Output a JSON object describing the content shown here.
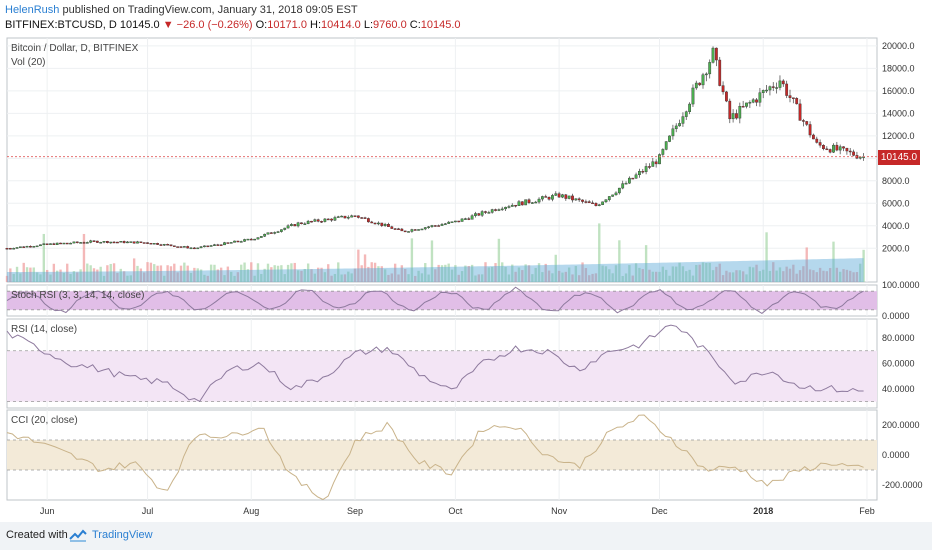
{
  "header": {
    "author": "HelenRush",
    "published": "published on TradingView.com, January 31, 2018 09:05 EST",
    "symbol": "BITFINEX:BTCUSD, D",
    "last": "10145.0",
    "change": "▼ −26.0 (−0.26%)",
    "o_label": "O:",
    "o_val": "10171.0",
    "h_label": "H:",
    "h_val": "10414.0",
    "l_label": "L:",
    "l_val": "9760.0",
    "c_label": "C:",
    "c_val": "10145.0"
  },
  "colors": {
    "up": "#4caf50",
    "down": "#c62828",
    "candle_body": "#333333",
    "volume": "#5aa9d6",
    "stoch_band": "#e1bee7",
    "rsi_band": "#f3e5f5",
    "cci_band": "#f3ead8"
  },
  "price_tag": "10145.0",
  "footer": {
    "created": "Created with",
    "brand": "TradingView",
    "icon": "tradingview-logo-icon"
  },
  "chart_data": [
    {
      "type": "candlestick",
      "title": "Bitcoin / Dollar, D, BITFINEX",
      "subtitle": "Vol (20)",
      "x_labels": [
        "Jun",
        "Jul",
        "Aug",
        "Sep",
        "Oct",
        "Nov",
        "Dec",
        "2018",
        "Feb"
      ],
      "y_ticks": [
        2000,
        4000,
        6000,
        8000,
        10000,
        12000,
        14000,
        16000,
        18000,
        20000
      ],
      "y_tick_labels": [
        "2000.0",
        "4000.0",
        "6000.0",
        "8000.0",
        "10000.0",
        "12000.0",
        "14000.0",
        "16000.0",
        "18000.0",
        "20000.0"
      ],
      "ylim": [
        -1000,
        20700
      ],
      "close_series_monthly": [
        {
          "date": "2017-05-20",
          "close": 2000
        },
        {
          "date": "2017-06-01",
          "close": 2350
        },
        {
          "date": "2017-06-15",
          "close": 2600
        },
        {
          "date": "2017-07-01",
          "close": 2500
        },
        {
          "date": "2017-07-15",
          "close": 2000
        },
        {
          "date": "2017-08-01",
          "close": 2800
        },
        {
          "date": "2017-08-15",
          "close": 4200
        },
        {
          "date": "2017-09-01",
          "close": 4900
        },
        {
          "date": "2017-09-15",
          "close": 3500
        },
        {
          "date": "2017-10-01",
          "close": 4350
        },
        {
          "date": "2017-10-15",
          "close": 5700
        },
        {
          "date": "2017-11-01",
          "close": 6700
        },
        {
          "date": "2017-11-12",
          "close": 5800
        },
        {
          "date": "2017-12-01",
          "close": 10000
        },
        {
          "date": "2017-12-17",
          "close": 19300
        },
        {
          "date": "2017-12-22",
          "close": 13500
        },
        {
          "date": "2018-01-06",
          "close": 17000
        },
        {
          "date": "2018-01-17",
          "close": 11200
        },
        {
          "date": "2018-01-31",
          "close": 10145
        }
      ],
      "last_price": 10145
    },
    {
      "type": "line",
      "title": "Stoch RSI (3, 3, 14, 14, close)",
      "y_tick_labels": [
        "100.0000",
        "0.0000"
      ],
      "ylim": [
        0,
        100
      ],
      "band": [
        20,
        80
      ]
    },
    {
      "type": "line",
      "title": "RSI (14, close)",
      "y_tick_labels": [
        "80.0000",
        "60.0000",
        "40.0000"
      ],
      "ylim": [
        25,
        95
      ],
      "band": [
        30,
        70
      ],
      "values_approx": [
        84,
        72,
        60,
        55,
        48,
        45,
        30,
        55,
        60,
        40,
        50,
        68,
        72,
        52,
        38,
        60,
        72,
        70,
        55,
        70,
        75,
        92,
        70,
        45,
        55,
        42,
        40,
        38
      ]
    },
    {
      "type": "line",
      "title": "CCI (20, close)",
      "y_tick_labels": [
        "200.0000",
        "0.0000",
        "-200.0000"
      ],
      "ylim": [
        -300,
        300
      ],
      "band": [
        -100,
        100
      ],
      "values_approx": [
        150,
        80,
        0,
        -100,
        -50,
        -250,
        150,
        120,
        200,
        -150,
        -300,
        100,
        200,
        -50,
        -120,
        180,
        200,
        0,
        -80,
        150,
        260,
        100,
        -100,
        -80,
        -200,
        -100,
        -50,
        -100
      ]
    }
  ]
}
